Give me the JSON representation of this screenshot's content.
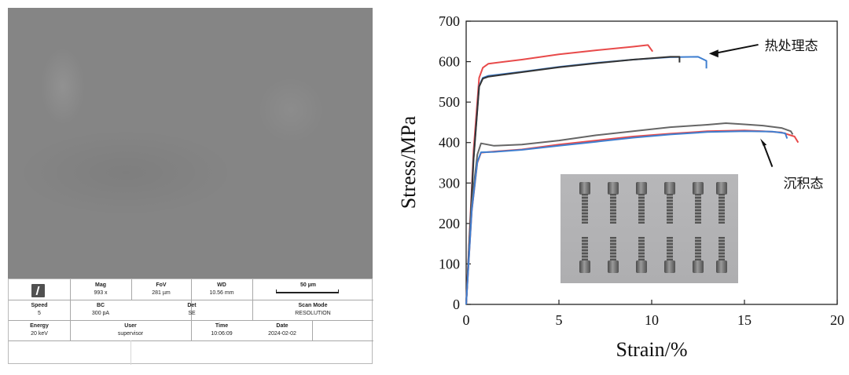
{
  "sem": {
    "mag_label": "Mag",
    "mag_value": "993 x",
    "fov_label": "FoV",
    "fov_value": "281 µm",
    "wd_label": "WD",
    "wd_value": "10.56 mm",
    "scale_label": "50 µm",
    "speed_label": "Speed",
    "speed_value": "5",
    "bc_label": "BC",
    "bc_value": "300 pA",
    "det_label": "Det",
    "det_value": "SE",
    "scanmode_label": "Scan Mode",
    "scanmode_value": "RESOLUTION",
    "energy_label": "Energy",
    "energy_value": "20 keV",
    "user_label": "User",
    "user_value": "supervisor",
    "time_label": "Time",
    "time_value": "10:06:09",
    "date_label": "Date",
    "date_value": "2024-02-02",
    "colors": {
      "image": "#858585"
    }
  },
  "chart_data": {
    "type": "line",
    "xlabel": "Strain/%",
    "ylabel": "Stress/MPa",
    "xlim": [
      0,
      20
    ],
    "ylim": [
      0,
      700
    ],
    "xticks": [
      0,
      5,
      10,
      15,
      20
    ],
    "yticks": [
      0,
      100,
      200,
      300,
      400,
      500,
      600,
      700
    ],
    "grid": false,
    "series": [
      {
        "color": "#e84a4a",
        "x": [
          0,
          0.4,
          0.7,
          0.9,
          1.2,
          3,
          5,
          7,
          9,
          9.8,
          10.05
        ],
        "y": [
          0,
          380,
          560,
          585,
          595,
          605,
          618,
          628,
          637,
          641,
          625
        ]
      },
      {
        "color": "#3f7fd0",
        "x": [
          0,
          0.4,
          0.7,
          0.9,
          1.2,
          3,
          5,
          7,
          9,
          11,
          12.5,
          12.95,
          12.95
        ],
        "y": [
          0,
          360,
          540,
          560,
          565,
          575,
          587,
          597,
          605,
          611,
          612,
          602,
          583
        ]
      },
      {
        "color": "#333333",
        "x": [
          0,
          0.4,
          0.7,
          0.9,
          1.2,
          3,
          5,
          7,
          9,
          11,
          11.5,
          11.5
        ],
        "y": [
          0,
          358,
          538,
          558,
          563,
          574,
          586,
          596,
          605,
          612,
          612,
          598
        ]
      },
      {
        "color": "#666666",
        "x": [
          0,
          0.3,
          0.6,
          0.8,
          1.5,
          3,
          5,
          7,
          9,
          11,
          13,
          14,
          15,
          16,
          17,
          17.5,
          17.6
        ],
        "y": [
          0,
          250,
          370,
          398,
          392,
          395,
          405,
          418,
          428,
          438,
          444,
          448,
          445,
          442,
          436,
          428,
          420
        ]
      },
      {
        "color": "#e84a4a",
        "x": [
          0,
          0.3,
          0.6,
          0.8,
          1.5,
          3,
          5,
          7,
          9,
          11,
          13,
          15,
          16,
          17,
          17.7,
          17.9
        ],
        "y": [
          0,
          230,
          350,
          375,
          378,
          383,
          395,
          405,
          415,
          422,
          428,
          430,
          428,
          425,
          415,
          400
        ]
      },
      {
        "color": "#3f7fd0",
        "x": [
          0,
          0.3,
          0.6,
          0.8,
          1.5,
          3,
          5,
          7,
          9,
          11,
          13,
          15,
          16.5,
          17.2,
          17.3
        ],
        "y": [
          0,
          232,
          352,
          376,
          377,
          382,
          392,
          402,
          412,
          420,
          426,
          428,
          427,
          423,
          410
        ]
      }
    ],
    "annotations": [
      {
        "text": "热处理态",
        "x": 16,
        "y": 640
      },
      {
        "text": "沉积态",
        "x": 17.1,
        "y": 300
      }
    ]
  }
}
